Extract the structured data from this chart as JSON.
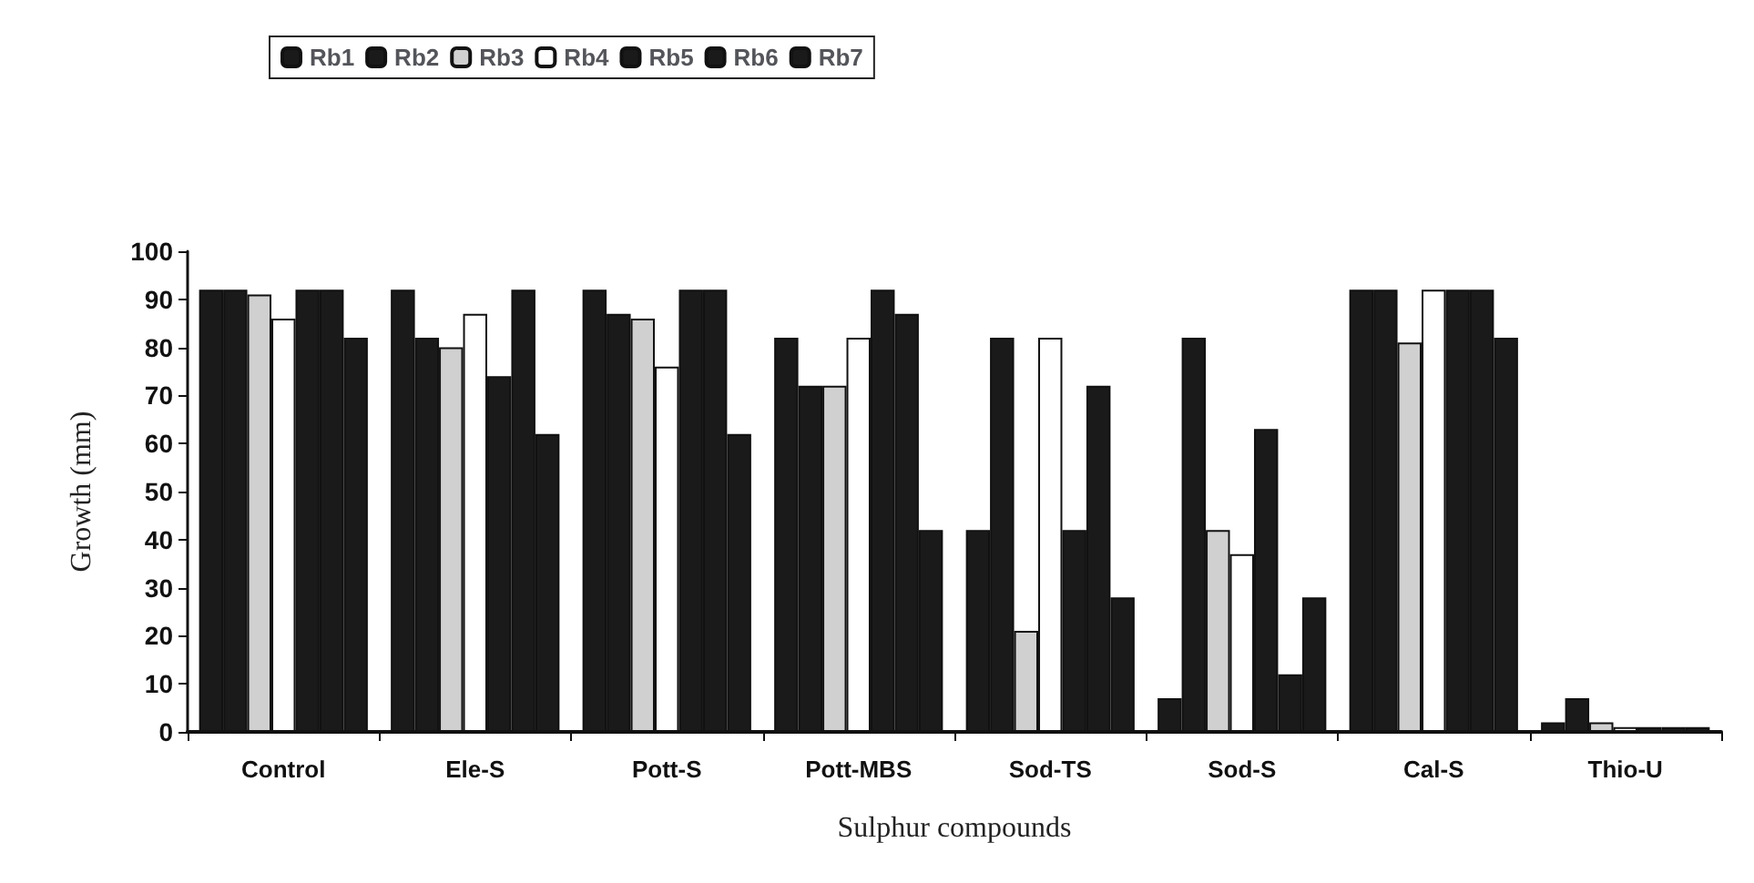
{
  "chart_data": {
    "type": "bar",
    "xlabel": "Sulphur compounds",
    "ylabel": "Growth (mm)",
    "categories": [
      "Control",
      "Ele-S",
      "Pott-S",
      "Pott-MBS",
      "Sod-TS",
      "Sod-S",
      "Cal-S",
      "Thio-U"
    ],
    "series": [
      {
        "name": "Rb1",
        "color": "#1a1a1a",
        "values": [
          92,
          92,
          92,
          82,
          42,
          7,
          92,
          2
        ]
      },
      {
        "name": "Rb2",
        "color": "#1a1a1a",
        "values": [
          92,
          82,
          87,
          72,
          82,
          82,
          92,
          7
        ]
      },
      {
        "name": "Rb3",
        "color": "#d0d0d0",
        "values": [
          91,
          80,
          86,
          72,
          21,
          42,
          81,
          2
        ]
      },
      {
        "name": "Rb4",
        "color": "#ffffff",
        "values": [
          86,
          87,
          76,
          82,
          82,
          37,
          92,
          1
        ]
      },
      {
        "name": "Rb5",
        "color": "#1a1a1a",
        "values": [
          92,
          74,
          92,
          92,
          42,
          63,
          92,
          1
        ]
      },
      {
        "name": "Rb6",
        "color": "#1a1a1a",
        "values": [
          92,
          92,
          92,
          87,
          72,
          12,
          92,
          1
        ]
      },
      {
        "name": "Rb7",
        "color": "#1a1a1a",
        "values": [
          82,
          62,
          62,
          42,
          28,
          28,
          82,
          1
        ]
      }
    ],
    "ylim": [
      0,
      100
    ],
    "yticks": [
      0,
      10,
      20,
      30,
      40,
      50,
      60,
      70,
      80,
      90,
      100
    ],
    "grid": false,
    "legend": "top"
  }
}
